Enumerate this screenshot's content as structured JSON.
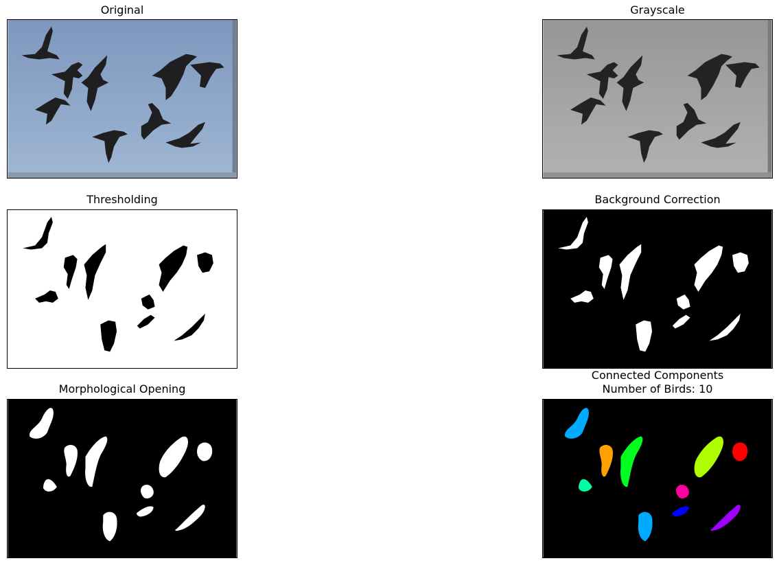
{
  "figure": {
    "panels": [
      {
        "id": "original",
        "title": "Original"
      },
      {
        "id": "grayscale",
        "title": "Grayscale"
      },
      {
        "id": "threshold",
        "title": "Thresholding"
      },
      {
        "id": "background",
        "title": "Background Correction"
      },
      {
        "id": "opening",
        "title": "Morphological Opening"
      },
      {
        "id": "components",
        "title_line1": "Connected Components",
        "title_line2": "Number of Birds: 10"
      }
    ]
  },
  "colors": {
    "sky": "#8fa8c8",
    "gray_bg": "#a6a6a6",
    "bird_dark": "#1e1e1e",
    "mask_black": "#000000",
    "mask_white": "#ffffff",
    "component_colors": [
      "#00aaff",
      "#ffa000",
      "#00ff20",
      "#00ffa0",
      "#b0ff00",
      "#ff0000",
      "#ff00a0",
      "#0000ff",
      "#00aaff",
      "#a000ff"
    ]
  }
}
